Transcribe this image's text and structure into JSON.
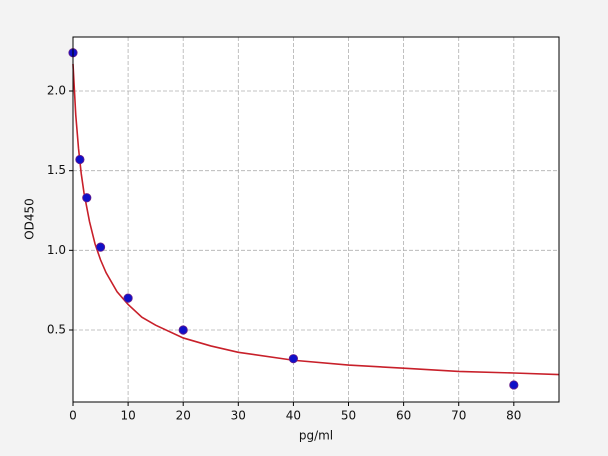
{
  "chart_data": {
    "type": "scatter",
    "xlabel": "pg/ml",
    "ylabel": "OD450",
    "xlim": [
      0,
      88.2
    ],
    "ylim": [
      0.048,
      2.339
    ],
    "xticks": [
      0,
      10,
      20,
      30,
      40,
      50,
      60,
      70,
      80
    ],
    "yticks": [
      0.5,
      {
        "value": 1,
        "label": "1.0"
      },
      1.5,
      {
        "value": 2,
        "label": "2.0"
      }
    ],
    "grid": true,
    "series": [
      {
        "type": "line",
        "color": "#c8202a",
        "x": [
          0,
          0.5,
          1,
          1.5,
          2,
          3,
          4,
          5,
          6,
          8,
          10,
          12.5,
          15,
          20,
          25,
          30,
          40,
          50,
          60,
          70,
          80,
          88.2
        ],
        "values": [
          2.17,
          1.85,
          1.64,
          1.48,
          1.36,
          1.18,
          1.04,
          0.94,
          0.86,
          0.74,
          0.66,
          0.58,
          0.53,
          0.45,
          0.4,
          0.36,
          0.31,
          0.28,
          0.26,
          0.24,
          0.23,
          0.22
        ]
      },
      {
        "type": "scatter",
        "color": "#1010c8",
        "x": [
          0,
          1.25,
          2.5,
          5,
          10,
          20,
          40,
          80
        ],
        "values": [
          2.24,
          1.57,
          1.33,
          1.02,
          0.7,
          0.5,
          0.32,
          0.155
        ]
      }
    ]
  }
}
